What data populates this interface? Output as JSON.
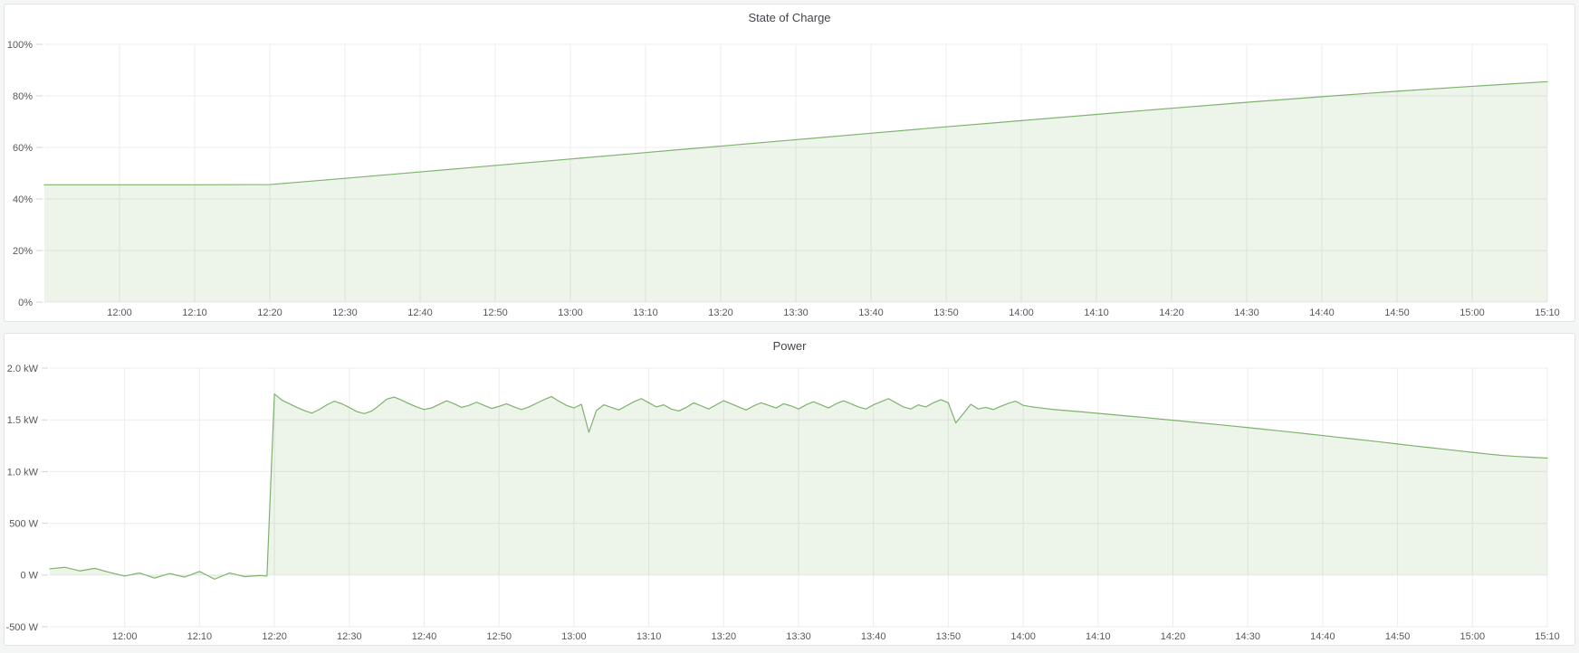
{
  "page": {
    "background": "#f4f5f5"
  },
  "colors": {
    "series_green": "#7eb26d",
    "series_fill": "rgba(126,178,109,0.14)",
    "gridline": "#ececec",
    "tick": "#d4d5d7",
    "axis_text": "#56585e"
  },
  "chart_data": [
    {
      "type": "area",
      "title": "State of Charge",
      "unit": "percent",
      "x_start_time": "11:50",
      "x_range_minutes": [
        0,
        200
      ],
      "x_tick_minutes": [
        10,
        20,
        30,
        40,
        50,
        60,
        70,
        80,
        90,
        100,
        110,
        120,
        130,
        140,
        150,
        160,
        170,
        180,
        190,
        200
      ],
      "x_tick_labels": [
        "12:00",
        "12:10",
        "12:20",
        "12:30",
        "12:40",
        "12:50",
        "13:00",
        "13:10",
        "13:20",
        "13:30",
        "13:40",
        "13:50",
        "14:00",
        "14:10",
        "14:20",
        "14:30",
        "14:40",
        "14:50",
        "15:00",
        "15:10"
      ],
      "y_range": [
        0,
        100
      ],
      "y_ticks": [
        0,
        20,
        40,
        60,
        80,
        100
      ],
      "y_tick_labels": [
        "0%",
        "20%",
        "40%",
        "60%",
        "80%",
        "100%"
      ],
      "fill_baseline": 0,
      "x": [
        0,
        10,
        20,
        30,
        40,
        50,
        60,
        70,
        80,
        90,
        100,
        110,
        120,
        130,
        140,
        150,
        160,
        170,
        180,
        190,
        200
      ],
      "values": [
        45.5,
        45.5,
        45.5,
        45.6,
        48.0,
        50.5,
        53.0,
        55.5,
        58.0,
        60.5,
        63.0,
        65.5,
        68.0,
        70.4,
        72.8,
        75.2,
        77.5,
        79.7,
        81.8,
        83.7,
        85.5
      ]
    },
    {
      "type": "area",
      "title": "Power",
      "unit": "watt",
      "x_start_time": "11:50",
      "x_range_minutes": [
        0,
        200
      ],
      "x_tick_minutes": [
        10,
        20,
        30,
        40,
        50,
        60,
        70,
        80,
        90,
        100,
        110,
        120,
        130,
        140,
        150,
        160,
        170,
        180,
        190,
        200
      ],
      "x_tick_labels": [
        "12:00",
        "12:10",
        "12:20",
        "12:30",
        "12:40",
        "12:50",
        "13:00",
        "13:10",
        "13:20",
        "13:30",
        "13:40",
        "13:50",
        "14:00",
        "14:10",
        "14:20",
        "14:30",
        "14:40",
        "14:50",
        "15:00",
        "15:10"
      ],
      "y_range": [
        -500,
        2000
      ],
      "y_ticks": [
        -500,
        0,
        500,
        1000,
        1500,
        2000
      ],
      "y_tick_labels": [
        "-500 W",
        "0 W",
        "500 W",
        "1.0 kW",
        "1.5 kW",
        "2.0 kW"
      ],
      "fill_baseline": 0,
      "x": [
        0,
        2,
        4,
        6,
        8,
        10,
        12,
        14,
        16,
        18,
        20,
        22,
        24,
        26,
        28,
        29,
        30,
        31,
        32,
        33,
        34,
        35,
        36,
        37,
        38,
        39,
        40,
        41,
        42,
        43,
        44,
        45,
        46,
        47,
        48,
        49,
        50,
        51,
        52,
        53,
        54,
        55,
        56,
        57,
        58,
        59,
        60,
        61,
        62,
        63,
        64,
        65,
        66,
        67,
        68,
        69,
        70,
        71,
        72,
        73,
        74,
        75,
        76,
        77,
        78,
        79,
        80,
        81,
        82,
        83,
        84,
        85,
        86,
        87,
        88,
        89,
        90,
        91,
        92,
        93,
        94,
        95,
        96,
        97,
        98,
        99,
        100,
        101,
        102,
        103,
        104,
        105,
        106,
        107,
        108,
        109,
        110,
        111,
        112,
        113,
        114,
        115,
        116,
        117,
        118,
        119,
        120,
        121,
        122,
        123,
        124,
        125,
        126,
        127,
        128,
        129,
        130,
        131,
        132,
        134,
        136,
        138,
        140,
        142,
        144,
        146,
        148,
        150,
        152,
        154,
        156,
        158,
        160,
        162,
        164,
        166,
        168,
        170,
        172,
        174,
        176,
        178,
        180,
        182,
        184,
        186,
        188,
        190,
        192,
        194,
        196,
        198,
        200
      ],
      "values": [
        60,
        75,
        40,
        65,
        25,
        -10,
        20,
        -30,
        15,
        -20,
        35,
        -40,
        20,
        -15,
        -5,
        -10,
        1750,
        1690,
        1655,
        1620,
        1590,
        1565,
        1600,
        1645,
        1680,
        1655,
        1620,
        1580,
        1560,
        1585,
        1640,
        1700,
        1720,
        1690,
        1655,
        1625,
        1600,
        1615,
        1650,
        1685,
        1655,
        1620,
        1640,
        1670,
        1640,
        1610,
        1630,
        1655,
        1625,
        1600,
        1625,
        1660,
        1695,
        1725,
        1680,
        1640,
        1615,
        1650,
        1380,
        1590,
        1645,
        1620,
        1595,
        1635,
        1675,
        1705,
        1665,
        1625,
        1645,
        1605,
        1585,
        1620,
        1665,
        1635,
        1605,
        1645,
        1685,
        1655,
        1625,
        1595,
        1635,
        1665,
        1640,
        1615,
        1655,
        1635,
        1605,
        1645,
        1675,
        1645,
        1615,
        1655,
        1685,
        1655,
        1625,
        1605,
        1645,
        1675,
        1705,
        1665,
        1625,
        1605,
        1645,
        1625,
        1665,
        1695,
        1665,
        1470,
        1560,
        1650,
        1605,
        1620,
        1600,
        1630,
        1660,
        1680,
        1640,
        1628,
        1618,
        1600,
        1588,
        1576,
        1563,
        1550,
        1537,
        1524,
        1510,
        1496,
        1482,
        1468,
        1454,
        1440,
        1425,
        1410,
        1395,
        1380,
        1364,
        1348,
        1332,
        1316,
        1300,
        1284,
        1267,
        1250,
        1234,
        1218,
        1202,
        1186,
        1170,
        1156,
        1146,
        1138,
        1130
      ]
    }
  ]
}
